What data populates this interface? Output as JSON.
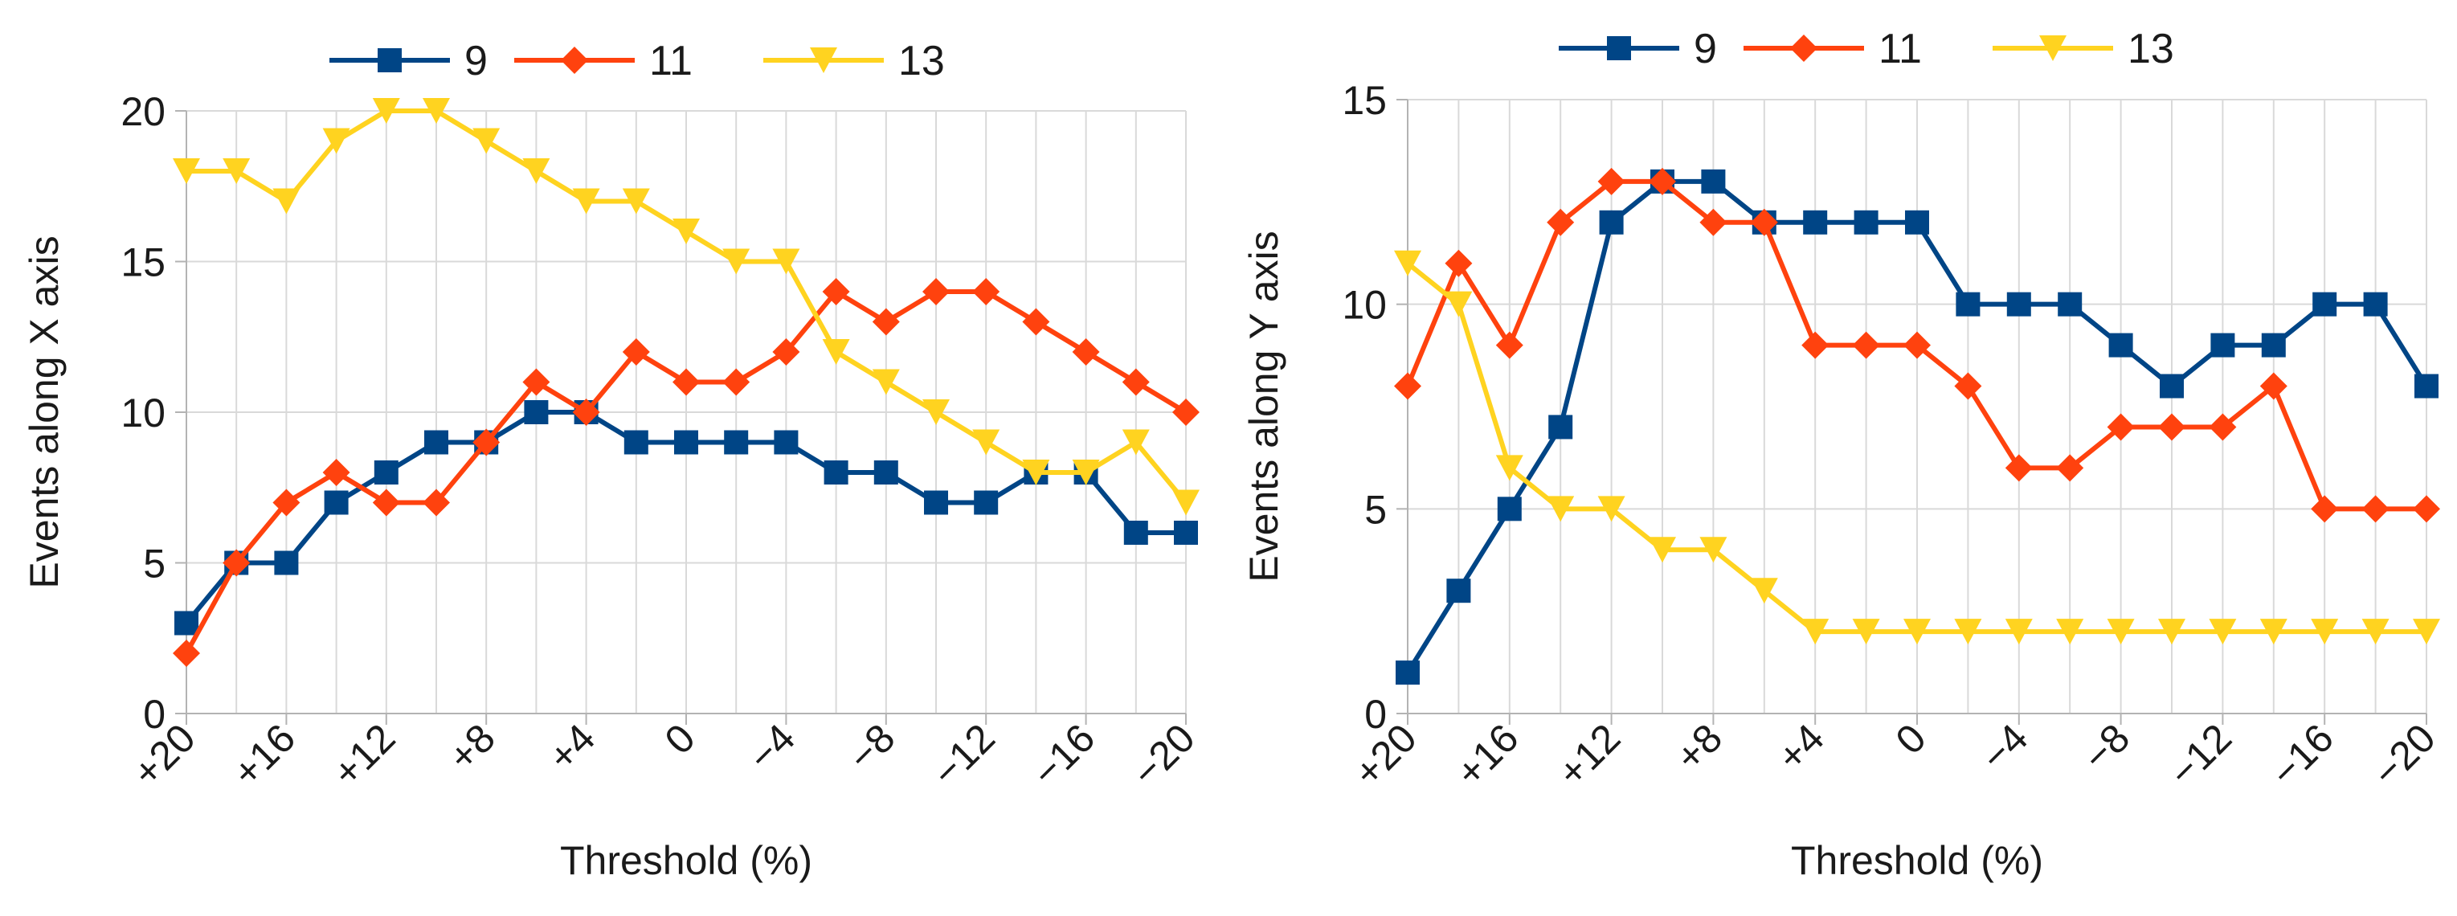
{
  "chart_data": [
    {
      "type": "line",
      "title": "",
      "xlabel": "Threshold (%)",
      "ylabel": "Events along X axis",
      "ylim": [
        0,
        20
      ],
      "yticks": [
        0,
        5,
        10,
        15,
        20
      ],
      "grid": true,
      "legend_position": "top",
      "x": [
        "+20",
        "+18",
        "+16",
        "+14",
        "+12",
        "+10",
        "+8",
        "+6",
        "+4",
        "+2",
        "0",
        "-2",
        "-4",
        "-6",
        "-8",
        "-10",
        "-12",
        "-14",
        "-16",
        "-18",
        "-20"
      ],
      "x_tick_labels": [
        "+20",
        "+16",
        "+12",
        "+8",
        "+4",
        "0",
        "−4",
        "−8",
        "−12",
        "−16",
        "−20"
      ],
      "series": [
        {
          "name": "9",
          "color": "#004586",
          "marker": "square",
          "values": [
            3,
            5,
            5,
            7,
            8,
            9,
            9,
            10,
            10,
            9,
            9,
            9,
            9,
            8,
            8,
            7,
            7,
            8,
            8,
            6,
            6
          ]
        },
        {
          "name": "11",
          "color": "#ff420e",
          "marker": "diamond",
          "values": [
            2,
            5,
            7,
            8,
            7,
            7,
            9,
            11,
            10,
            12,
            11,
            11,
            12,
            14,
            13,
            14,
            14,
            13,
            12,
            11,
            10
          ]
        },
        {
          "name": "13",
          "color": "#ffd320",
          "marker": "triangle-down",
          "values": [
            18,
            18,
            17,
            19,
            20,
            20,
            19,
            18,
            17,
            17,
            16,
            15,
            15,
            12,
            11,
            10,
            9,
            8,
            8,
            9,
            7
          ]
        }
      ]
    },
    {
      "type": "line",
      "title": "",
      "xlabel": "Threshold (%)",
      "ylabel": "Events along Y axis",
      "ylim": [
        0,
        15
      ],
      "yticks": [
        0,
        5,
        10,
        15
      ],
      "grid": true,
      "legend_position": "top",
      "x": [
        "+20",
        "+18",
        "+16",
        "+14",
        "+12",
        "+10",
        "+8",
        "+6",
        "+4",
        "+2",
        "0",
        "-2",
        "-4",
        "-6",
        "-8",
        "-10",
        "-12",
        "-14",
        "-16",
        "-18",
        "-20"
      ],
      "x_tick_labels": [
        "+20",
        "+16",
        "+12",
        "+8",
        "+4",
        "0",
        "−4",
        "−8",
        "−12",
        "−16",
        "−20"
      ],
      "series": [
        {
          "name": "9",
          "color": "#004586",
          "marker": "square",
          "values": [
            1,
            3,
            5,
            7,
            12,
            13,
            13,
            12,
            12,
            12,
            12,
            10,
            10,
            10,
            9,
            8,
            9,
            9,
            10,
            10,
            8
          ]
        },
        {
          "name": "11",
          "color": "#ff420e",
          "marker": "diamond",
          "values": [
            8,
            11,
            9,
            12,
            13,
            13,
            12,
            12,
            9,
            9,
            9,
            8,
            6,
            6,
            7,
            7,
            7,
            8,
            5,
            5,
            5
          ]
        },
        {
          "name": "13",
          "color": "#ffd320",
          "marker": "triangle-down",
          "values": [
            11,
            10,
            6,
            5,
            5,
            4,
            4,
            3,
            2,
            2,
            2,
            2,
            2,
            2,
            2,
            2,
            2,
            2,
            2,
            2,
            2
          ]
        }
      ]
    }
  ]
}
